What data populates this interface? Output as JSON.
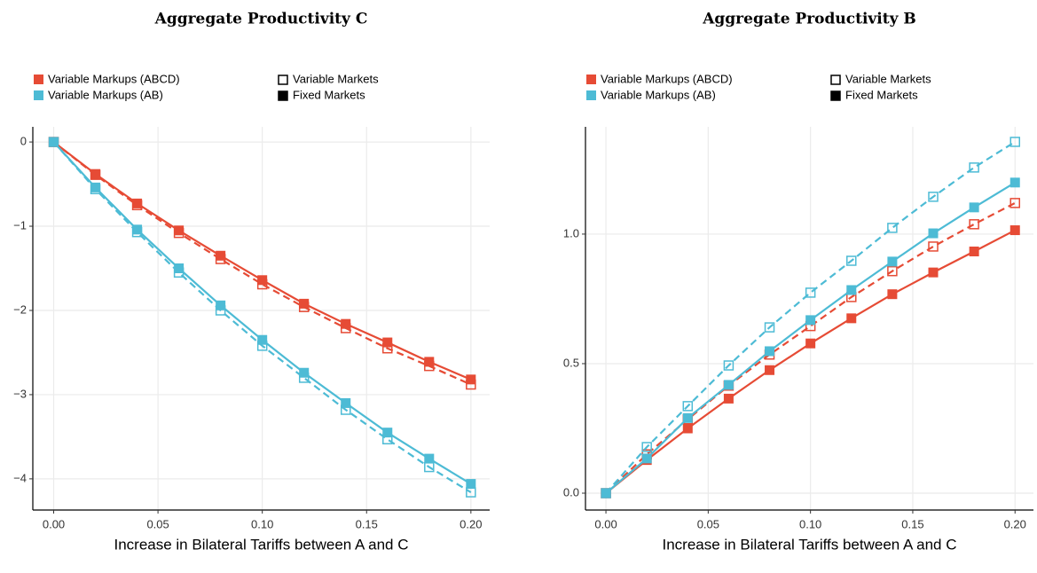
{
  "chart_data": [
    {
      "type": "line",
      "title": "Aggregate Productivity C",
      "x_label": "Increase in Bilateral Tariffs between A and C",
      "x": [
        0,
        0.02,
        0.04,
        0.06,
        0.08,
        0.1,
        0.12,
        0.14,
        0.16,
        0.18,
        0.2
      ],
      "series": [
        {
          "name": "Variable Markups (ABCD)",
          "color": "#e64b35",
          "fixed": [
            0,
            -0.38,
            -0.73,
            -1.05,
            -1.35,
            -1.64,
            -1.92,
            -2.16,
            -2.38,
            -2.61,
            -2.82
          ],
          "variable": [
            0,
            -0.39,
            -0.75,
            -1.08,
            -1.39,
            -1.69,
            -1.96,
            -2.21,
            -2.45,
            -2.66,
            -2.88
          ]
        },
        {
          "name": "Variable Markups (AB)",
          "color": "#4dbbd5",
          "fixed": [
            0,
            -0.54,
            -1.04,
            -1.5,
            -1.94,
            -2.35,
            -2.74,
            -3.1,
            -3.45,
            -3.76,
            -4.06
          ],
          "variable": [
            0,
            -0.56,
            -1.07,
            -1.55,
            -2.0,
            -2.42,
            -2.8,
            -3.18,
            -3.53,
            -3.86,
            -4.16
          ]
        }
      ],
      "market_types": [
        "Variable Markets",
        "Fixed Markets"
      ],
      "xlim": [
        -0.01,
        0.209
      ],
      "ylim": [
        -4.37,
        0.18
      ],
      "xticks": [
        {
          "value": 0,
          "label": "0.00"
        },
        {
          "value": 0.05,
          "label": "0.05"
        },
        {
          "value": 0.1,
          "label": "0.10"
        },
        {
          "value": 0.15,
          "label": "0.15"
        },
        {
          "value": 0.2,
          "label": "0.20"
        }
      ],
      "yticks": [
        {
          "value": -4,
          "label": "−4"
        },
        {
          "value": -3,
          "label": "−3"
        },
        {
          "value": -2,
          "label": "−2"
        },
        {
          "value": -1,
          "label": "−1"
        },
        0
      ],
      "grid": true
    },
    {
      "type": "line",
      "title": "Aggregate Productivity B",
      "x_label": "Increase in Bilateral Tariffs between A and C",
      "x": [
        0,
        0.02,
        0.04,
        0.06,
        0.08,
        0.1,
        0.12,
        0.14,
        0.16,
        0.18,
        0.2
      ],
      "series": [
        {
          "name": "Variable Markups (ABCD)",
          "color": "#e64b35",
          "fixed": [
            0,
            0.128,
            0.25,
            0.365,
            0.475,
            0.578,
            0.675,
            0.768,
            0.852,
            0.933,
            1.015
          ],
          "variable": [
            0,
            0.15,
            0.285,
            0.415,
            0.535,
            0.645,
            0.757,
            0.857,
            0.952,
            1.038,
            1.12
          ]
        },
        {
          "name": "Variable Markups (AB)",
          "color": "#4dbbd5",
          "fixed": [
            0,
            0.134,
            0.29,
            0.418,
            0.548,
            0.668,
            0.784,
            0.894,
            1.003,
            1.103,
            1.199
          ],
          "variable": [
            0,
            0.178,
            0.336,
            0.493,
            0.64,
            0.774,
            0.897,
            1.024,
            1.144,
            1.257,
            1.356
          ]
        }
      ],
      "market_types": [
        "Variable Markets",
        "Fixed Markets"
      ],
      "xlim": [
        -0.01,
        0.209
      ],
      "ylim": [
        -0.065,
        1.414
      ],
      "xticks": [
        {
          "value": 0,
          "label": "0.00"
        },
        {
          "value": 0.05,
          "label": "0.05"
        },
        {
          "value": 0.1,
          "label": "0.10"
        },
        {
          "value": 0.15,
          "label": "0.15"
        },
        {
          "value": 0.2,
          "label": "0.20"
        }
      ],
      "yticks": [
        {
          "value": 0,
          "label": "0.0"
        },
        {
          "value": 0.5,
          "label": "0.5"
        },
        {
          "value": 1,
          "label": "1.0"
        }
      ],
      "grid": true
    }
  ]
}
